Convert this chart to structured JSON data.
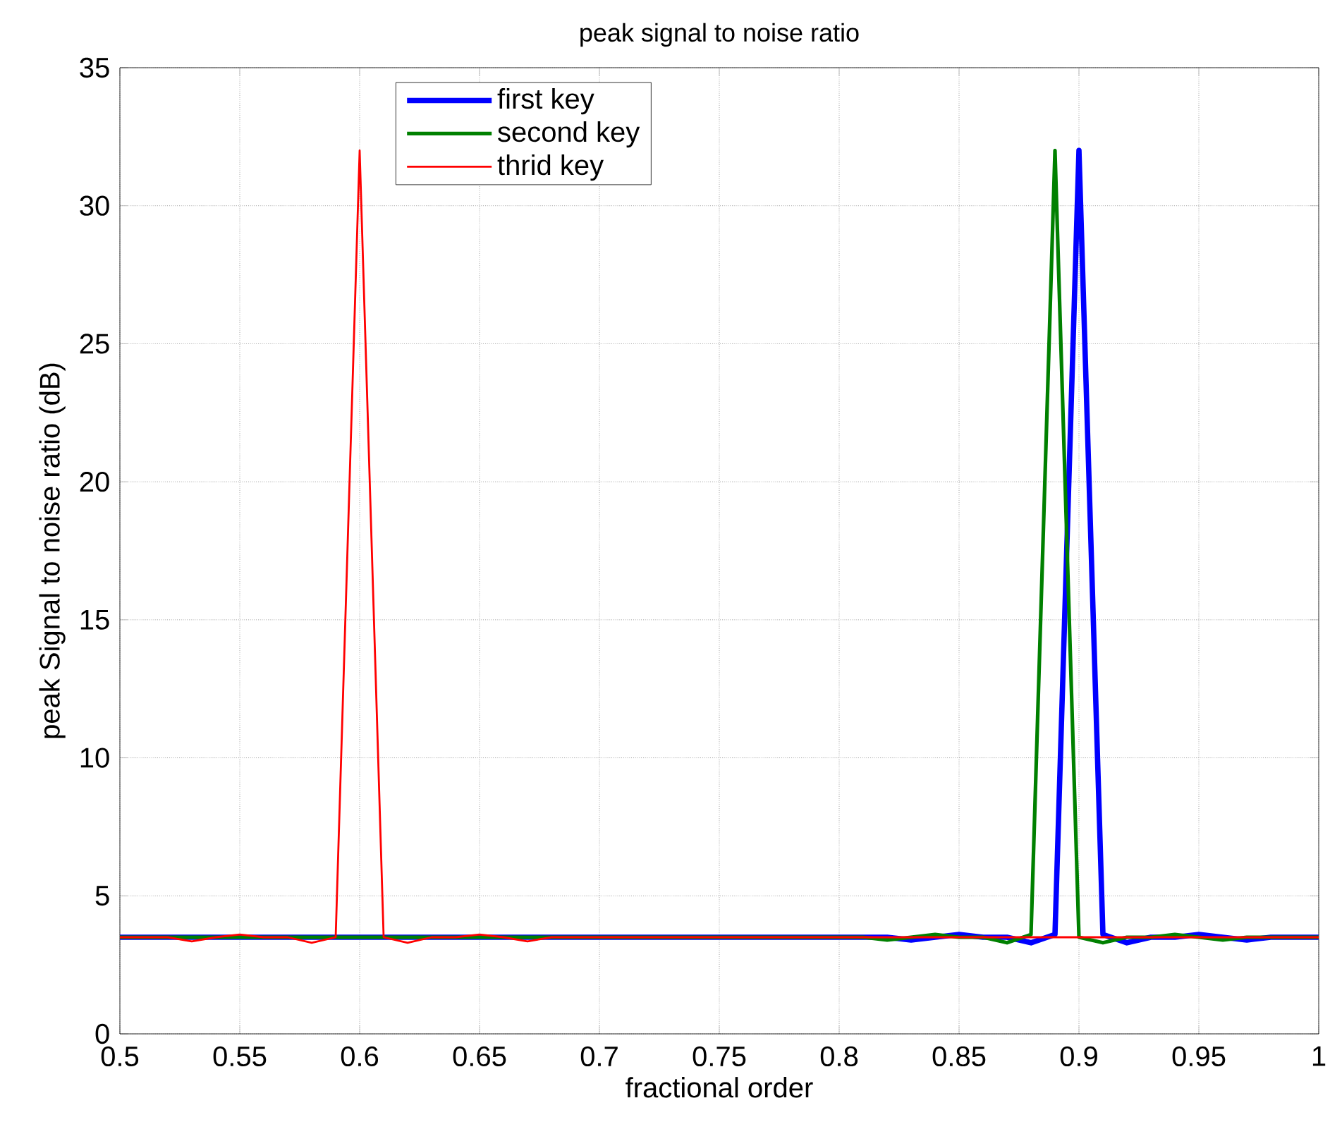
{
  "chart_data": {
    "type": "line",
    "title": "peak signal to noise ratio",
    "xlabel": "fractional order",
    "ylabel": "peak Signal to noise ratio (dB)",
    "x": [
      0.5,
      0.51,
      0.52,
      0.53,
      0.54,
      0.55,
      0.56,
      0.57,
      0.58,
      0.59,
      0.6,
      0.61,
      0.62,
      0.63,
      0.64,
      0.65,
      0.66,
      0.67,
      0.68,
      0.69,
      0.7,
      0.71,
      0.72,
      0.73,
      0.74,
      0.75,
      0.76,
      0.77,
      0.78,
      0.79,
      0.8,
      0.81,
      0.82,
      0.83,
      0.84,
      0.85,
      0.86,
      0.87,
      0.88,
      0.89,
      0.9,
      0.91,
      0.92,
      0.93,
      0.94,
      0.95,
      0.96,
      0.97,
      0.98,
      0.99,
      1.0
    ],
    "series": [
      {
        "name": "first key",
        "color": "#0000ff",
        "values": [
          3.5,
          3.5,
          3.5,
          3.5,
          3.5,
          3.5,
          3.5,
          3.5,
          3.5,
          3.5,
          3.5,
          3.5,
          3.5,
          3.5,
          3.5,
          3.5,
          3.5,
          3.5,
          3.5,
          3.5,
          3.5,
          3.5,
          3.5,
          3.5,
          3.5,
          3.5,
          3.5,
          3.5,
          3.5,
          3.5,
          3.5,
          3.5,
          3.5,
          3.4,
          3.5,
          3.6,
          3.5,
          3.5,
          3.3,
          3.6,
          32,
          3.6,
          3.3,
          3.5,
          3.5,
          3.6,
          3.5,
          3.4,
          3.5,
          3.5,
          3.5
        ]
      },
      {
        "name": "second key",
        "color": "#008000",
        "values": [
          3.5,
          3.5,
          3.5,
          3.5,
          3.5,
          3.5,
          3.5,
          3.5,
          3.5,
          3.5,
          3.5,
          3.5,
          3.5,
          3.5,
          3.5,
          3.5,
          3.5,
          3.5,
          3.5,
          3.5,
          3.5,
          3.5,
          3.5,
          3.5,
          3.5,
          3.5,
          3.5,
          3.5,
          3.5,
          3.5,
          3.5,
          3.5,
          3.4,
          3.5,
          3.6,
          3.5,
          3.5,
          3.3,
          3.6,
          32,
          3.5,
          3.3,
          3.5,
          3.5,
          3.6,
          3.5,
          3.4,
          3.5,
          3.5,
          3.5,
          3.5
        ]
      },
      {
        "name": "thrid key",
        "color": "#ff0000",
        "values": [
          3.5,
          3.5,
          3.5,
          3.35,
          3.5,
          3.6,
          3.5,
          3.5,
          3.3,
          3.5,
          32,
          3.5,
          3.3,
          3.5,
          3.5,
          3.6,
          3.5,
          3.35,
          3.5,
          3.5,
          3.5,
          3.5,
          3.5,
          3.5,
          3.5,
          3.5,
          3.5,
          3.5,
          3.5,
          3.5,
          3.5,
          3.5,
          3.5,
          3.5,
          3.5,
          3.5,
          3.5,
          3.5,
          3.5,
          3.5,
          3.5,
          3.5,
          3.5,
          3.5,
          3.5,
          3.5,
          3.5,
          3.5,
          3.5,
          3.5,
          3.5
        ]
      }
    ],
    "xlim": [
      0.5,
      1
    ],
    "ylim": [
      0,
      35
    ],
    "xticks": [
      0.5,
      0.55,
      0.6,
      0.65,
      0.7,
      0.75,
      0.8,
      0.85,
      0.9,
      0.95,
      1
    ],
    "yticks": [
      0,
      5,
      10,
      15,
      20,
      25,
      30,
      35
    ],
    "grid": true,
    "legend": "top left",
    "marker": "none",
    "line_style": "solid"
  }
}
